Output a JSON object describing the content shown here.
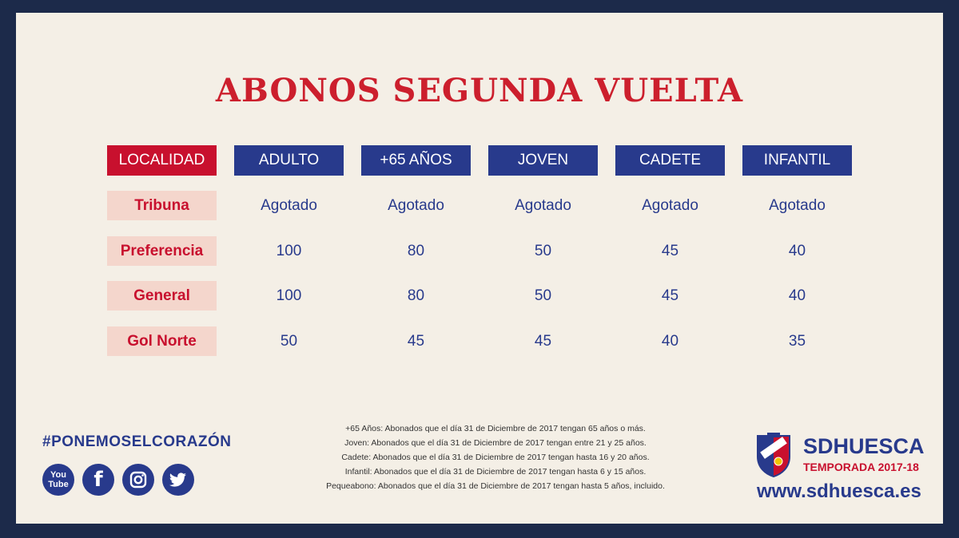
{
  "title": "ABONOS SEGUNDA VUELTA",
  "table": {
    "header_label": "LOCALIDAD",
    "columns": [
      "ADULTO",
      "+65 AÑOS",
      "JOVEN",
      "CADETE",
      "INFANTIL"
    ],
    "rows": [
      {
        "label": "Tribuna",
        "values": [
          "Agotado",
          "Agotado",
          "Agotado",
          "Agotado",
          "Agotado"
        ]
      },
      {
        "label": "Preferencia",
        "values": [
          "100",
          "80",
          "50",
          "45",
          "40"
        ]
      },
      {
        "label": "General",
        "values": [
          "100",
          "80",
          "50",
          "45",
          "40"
        ]
      },
      {
        "label": "Gol Norte",
        "values": [
          "50",
          "45",
          "45",
          "40",
          "35"
        ]
      }
    ]
  },
  "footer": {
    "hashtag": "#PONEMOSELCORAZÓN",
    "social": {
      "youtube_line1": "You",
      "youtube_line2": "Tube",
      "facebook": "f"
    },
    "notes": [
      "+65 Años: Abonados que el día 31 de Diciembre de 2017 tengan 65 años o más.",
      "Joven: Abonados que el día 31 de Diciembre de 2017 tengan entre 21 y 25 años.",
      "Cadete: Abonados que el día 31 de Diciembre de 2017 tengan hasta 16 y 20 años.",
      "Infantil: Abonados que el día 31 de Diciembre de 2017 tengan hasta 6 y 15 años.",
      "Pequeabono: Abonados que el día 31 de Diciembre de 2017 tengan hasta 5 años, incluido."
    ],
    "brand": "SDHUESCA",
    "season": "TEMPORADA 2017-18",
    "url": "www.sdhuesca.es"
  },
  "colors": {
    "red": "#c8102e",
    "navy": "#283a8c",
    "background": "#f4efe6",
    "frame": "#1c2a4a"
  }
}
